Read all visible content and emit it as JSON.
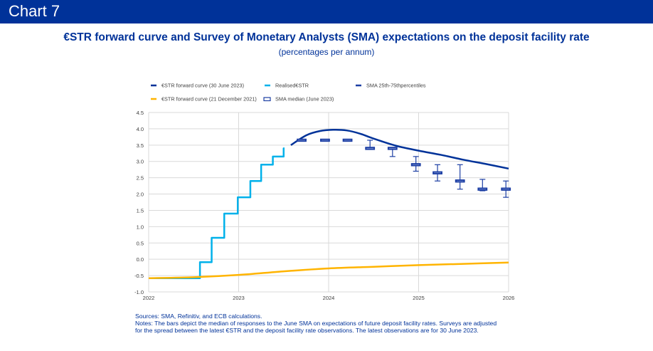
{
  "header": {
    "label": "Chart 7"
  },
  "chart_data": {
    "type": "line",
    "title": "€STR forward curve and Survey of Monetary Analysts (SMA) expectations on the deposit facility rate",
    "subtitle": "(percentages per annum)",
    "xlabel": "",
    "ylabel": "",
    "xlim": [
      2022,
      2026
    ],
    "ylim": [
      -1.0,
      4.5
    ],
    "x_ticks": [
      "2022",
      "2023",
      "2024",
      "2025",
      "2026"
    ],
    "y_ticks": [
      "-1.0",
      "-0.5",
      "0.0",
      "0.5",
      "1.0",
      "1.5",
      "2.0",
      "2.5",
      "3.0",
      "3.5",
      "4.0",
      "4.5"
    ],
    "grid": true,
    "legend_position": "top",
    "legend": [
      {
        "name": "€STR forward curve (30 June 2023)",
        "color": "#003299",
        "kind": "line"
      },
      {
        "name": "Realised€STR",
        "color": "#00b1ea",
        "kind": "line"
      },
      {
        "name": "SMA 25th-75thpercentiles",
        "color": "#1d3fa4",
        "kind": "line"
      },
      {
        "name": "€STR forward curve (21 December 2021)",
        "color": "#ffb400",
        "kind": "line"
      },
      {
        "name": "SMA median (June 2023)",
        "color": "#1d3fa4",
        "kind": "box"
      }
    ],
    "series": [
      {
        "name": "Realised€STR",
        "color": "#00b1ea",
        "step": true,
        "x": [
          2022.0,
          2022.57,
          2022.7,
          2022.84,
          2022.99,
          2023.13,
          2023.25,
          2023.38,
          2023.5,
          2023.51
        ],
        "y": [
          -0.58,
          -0.09,
          0.66,
          1.4,
          1.9,
          2.4,
          2.9,
          3.15,
          3.4,
          3.4
        ]
      },
      {
        "name": "€STR forward curve (30 June 2023)",
        "color": "#003299",
        "x": [
          2023.58,
          2023.75,
          2023.9,
          2024.05,
          2024.2,
          2024.35,
          2024.5,
          2024.75,
          2025.0,
          2025.25,
          2025.5,
          2025.75,
          2026.0
        ],
        "y": [
          3.5,
          3.8,
          3.93,
          3.97,
          3.95,
          3.85,
          3.7,
          3.48,
          3.33,
          3.2,
          3.05,
          2.92,
          2.78
        ]
      },
      {
        "name": "€STR forward curve (21 December 2021)",
        "color": "#ffb400",
        "x": [
          2022.0,
          2022.5,
          2023.0,
          2023.5,
          2024.0,
          2024.5,
          2025.0,
          2025.5,
          2026.0
        ],
        "y": [
          -0.58,
          -0.55,
          -0.48,
          -0.37,
          -0.28,
          -0.23,
          -0.18,
          -0.14,
          -0.1
        ]
      }
    ],
    "sma": {
      "name": "SMA median (June 2023)",
      "x": [
        2023.7,
        2023.96,
        2024.21,
        2024.46,
        2024.71,
        2024.97,
        2025.21,
        2025.46,
        2025.71,
        2025.97
      ],
      "median": [
        3.65,
        3.65,
        3.65,
        3.4,
        3.4,
        2.9,
        2.65,
        2.4,
        2.15,
        2.15
      ],
      "p25": [
        3.65,
        3.65,
        3.65,
        3.4,
        3.15,
        2.7,
        2.4,
        2.15,
        2.1,
        1.9
      ],
      "p75": [
        3.65,
        3.65,
        3.65,
        3.65,
        3.4,
        3.15,
        2.9,
        2.9,
        2.45,
        2.4
      ]
    }
  },
  "notes": {
    "sources": "Sources: SMA, Refinitiv, and ECB calculations.",
    "line1": "Notes: The bars depict the median of responses to the June SMA on expectations of future deposit facility rates. Surveys are adjusted",
    "line2": "for the spread between the latest €STR and the deposit facility rate observations. The latest observations are for 30 June 2023."
  }
}
